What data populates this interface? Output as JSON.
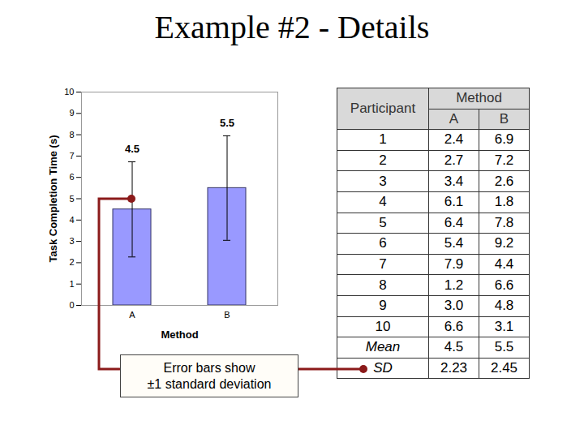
{
  "chart_data": {
    "type": "bar",
    "title": "Example #2 - Details",
    "categories": [
      "A",
      "B"
    ],
    "values": [
      4.5,
      5.5
    ],
    "error": [
      2.23,
      2.45
    ],
    "color": "#9999ff",
    "x_label": "Method",
    "y_label": "Task Completion Time (s)",
    "ylim": [
      0,
      10
    ],
    "yticks": [
      0,
      1,
      2,
      3,
      4,
      5,
      6,
      7,
      8,
      9,
      10
    ],
    "grid": false,
    "data_labels": true,
    "annotation": [
      "Error bars show",
      "±1 standard deviation"
    ]
  },
  "table": {
    "header": {
      "participant": "Participant",
      "group": "Method",
      "columns": [
        "A",
        "B"
      ]
    },
    "rows": [
      [
        "1",
        "2.4",
        "6.9"
      ],
      [
        "2",
        "2.7",
        "7.2"
      ],
      [
        "3",
        "3.4",
        "2.6"
      ],
      [
        "4",
        "6.1",
        "1.8"
      ],
      [
        "5",
        "6.4",
        "7.8"
      ],
      [
        "6",
        "5.4",
        "9.2"
      ],
      [
        "7",
        "7.9",
        "4.4"
      ],
      [
        "8",
        "1.2",
        "6.6"
      ],
      [
        "9",
        "3.0",
        "4.8"
      ],
      [
        "10",
        "6.6",
        "3.1"
      ]
    ],
    "summary": [
      [
        "Mean",
        "4.5",
        "5.5"
      ],
      [
        "SD",
        "2.23",
        "2.45"
      ]
    ]
  }
}
